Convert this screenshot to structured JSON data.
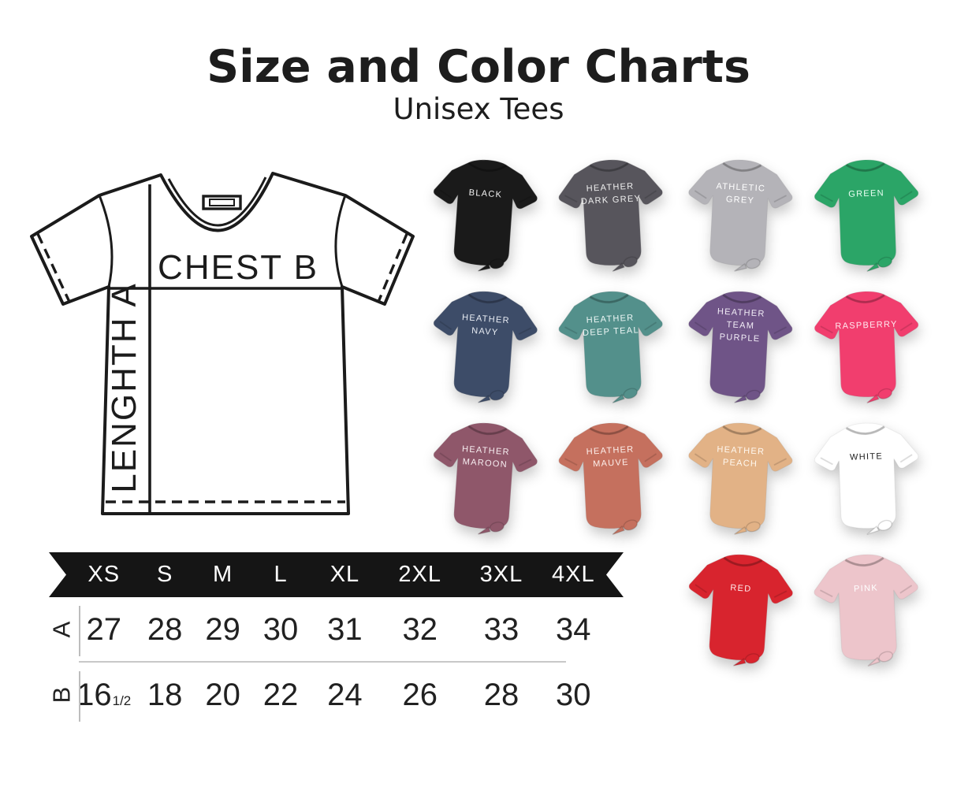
{
  "title": "Size and Color Charts",
  "subtitle": "Unisex Tees",
  "diagram": {
    "length_label": "LENGHTH A",
    "chest_label": "CHEST B"
  },
  "shirts": [
    {
      "name": "BLACK",
      "lines": [
        "BLACK"
      ],
      "hex": "#1a1a1a",
      "label_color": "#f5f5f5"
    },
    {
      "name": "HEATHER DARK GREY",
      "lines": [
        "HEATHER",
        "DARK GREY"
      ],
      "hex": "#57555c",
      "label_color": "#f0f0f0"
    },
    {
      "name": "ATHLETIC GREY",
      "lines": [
        "ATHLETIC",
        "GREY"
      ],
      "hex": "#b4b3b8",
      "label_color": "#ffffff"
    },
    {
      "name": "GREEN",
      "lines": [
        "GREEN"
      ],
      "hex": "#2ba567",
      "label_color": "#eafff3"
    },
    {
      "name": "HEATHER NAVY",
      "lines": [
        "HEATHER",
        "NAVY"
      ],
      "hex": "#3d4c68",
      "label_color": "#e9edf4"
    },
    {
      "name": "HEATHER DEEP TEAL",
      "lines": [
        "HEATHER",
        "DEEP TEAL"
      ],
      "hex": "#53908b",
      "label_color": "#eef7f6"
    },
    {
      "name": "HEATHER TEAM PURPLE",
      "lines": [
        "HEATHER",
        "TEAM",
        "PURPLE"
      ],
      "hex": "#6f5487",
      "label_color": "#f1ecf6"
    },
    {
      "name": "RASPBERRY",
      "lines": [
        "RASPBERRY"
      ],
      "hex": "#f13e6e",
      "label_color": "#ffe9ef"
    },
    {
      "name": "HEATHER MAROON",
      "lines": [
        "HEATHER",
        "MAROON"
      ],
      "hex": "#8f576a",
      "label_color": "#f7eef1"
    },
    {
      "name": "HEATHER MAUVE",
      "lines": [
        "HEATHER",
        "MAUVE"
      ],
      "hex": "#c5705e",
      "label_color": "#fdf0ec"
    },
    {
      "name": "HEATHER PEACH",
      "lines": [
        "HEATHER",
        "PEACH"
      ],
      "hex": "#e2b286",
      "label_color": "#fff8ef"
    },
    {
      "name": "WHITE",
      "lines": [
        "WHITE"
      ],
      "hex": "#ffffff",
      "label_color": "#1d1d1d"
    },
    {
      "name": "RED",
      "lines": [
        "RED"
      ],
      "hex": "#d8242e",
      "label_color": "#ffecec"
    },
    {
      "name": "PINK",
      "lines": [
        "PINK"
      ],
      "hex": "#edc5cb",
      "label_color": "#ffffff"
    }
  ],
  "palette": {
    "background": "#ffffff",
    "ribbon": "#151515",
    "ink": "#1d1d1d",
    "divider": "#c8c8c8"
  },
  "chart_data": {
    "type": "table",
    "title": "Size and Color Charts",
    "subtitle": "Unisex Tees",
    "columns": [
      "XS",
      "S",
      "M",
      "L",
      "XL",
      "2XL",
      "3XL",
      "4XL"
    ],
    "rows": [
      {
        "label": "A",
        "dimension": "LENGHTH",
        "values": [
          "27",
          "28",
          "29",
          "30",
          "31",
          "32",
          "33",
          "34"
        ]
      },
      {
        "label": "B",
        "dimension": "CHEST",
        "values": [
          "16 1/2",
          "18",
          "20",
          "22",
          "24",
          "26",
          "28",
          "30"
        ]
      }
    ],
    "color_options": [
      "BLACK",
      "HEATHER DARK GREY",
      "ATHLETIC GREY",
      "GREEN",
      "HEATHER NAVY",
      "HEATHER DEEP TEAL",
      "HEATHER TEAM PURPLE",
      "RASPBERRY",
      "HEATHER MAROON",
      "HEATHER MAUVE",
      "HEATHER PEACH",
      "WHITE",
      "RED",
      "PINK"
    ]
  }
}
